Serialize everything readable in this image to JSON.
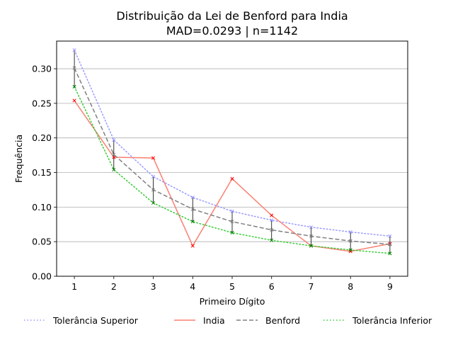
{
  "chart_data": {
    "type": "line",
    "title": "Distribuição da Lei de Benford para India",
    "subtitle": "MAD=0.0293 | n=1142",
    "xlabel": "Primeiro Dígito",
    "ylabel": "Frequência",
    "xlim": [
      0.55,
      9.45
    ],
    "ylim": [
      0,
      0.34
    ],
    "x_ticks": [
      1,
      2,
      3,
      4,
      5,
      6,
      7,
      8,
      9
    ],
    "y_ticks": [
      "0.00",
      "0.05",
      "0.10",
      "0.15",
      "0.20",
      "0.25",
      "0.30"
    ],
    "y_tick_values": [
      0,
      0.05,
      0.1,
      0.15,
      0.2,
      0.25,
      0.3
    ],
    "grid": "horizontal",
    "legend_position": "bottom",
    "x": [
      1,
      2,
      3,
      4,
      5,
      6,
      7,
      8,
      9
    ],
    "series": [
      {
        "name": "Tolerância Superior",
        "values": [
          0.327,
          0.197,
          0.144,
          0.114,
          0.094,
          0.081,
          0.071,
          0.064,
          0.058
        ],
        "color": "#9999ff",
        "style": "dotted",
        "marker": "x"
      },
      {
        "name": "India",
        "values": [
          0.254,
          0.172,
          0.171,
          0.044,
          0.141,
          0.088,
          0.044,
          0.036,
          0.047
        ],
        "color": "#fa8072",
        "style": "solid",
        "marker": "x",
        "marker_color": "#ff0000"
      },
      {
        "name": "Benford",
        "values": [
          0.301,
          0.176,
          0.125,
          0.097,
          0.079,
          0.067,
          0.058,
          0.051,
          0.046
        ],
        "color": "#808080",
        "style": "dashed",
        "marker": "x"
      },
      {
        "name": "Tolerância Inferior",
        "values": [
          0.274,
          0.154,
          0.106,
          0.079,
          0.063,
          0.052,
          0.044,
          0.038,
          0.033
        ],
        "color": "#33cc33",
        "style": "dotted",
        "marker": "x",
        "marker_color": "#008000"
      }
    ],
    "error_bars": "black vertical lines spanning from Tolerância Inferior to Tolerância Superior at each digit"
  }
}
